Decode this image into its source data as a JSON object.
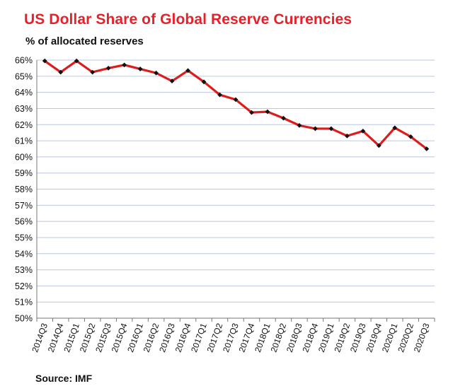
{
  "chart_data": {
    "type": "line",
    "title": "US Dollar Share of Global Reserve Currencies",
    "subtitle": "% of allocated reserves",
    "source": "Source: IMF",
    "categories": [
      "2014Q3",
      "2014Q4",
      "2015Q1",
      "2015Q2",
      "2015Q3",
      "2015Q4",
      "2016Q1",
      "2016Q2",
      "2016Q3",
      "2016Q4",
      "2017Q1",
      "2017Q2",
      "2017Q3",
      "2017Q4",
      "2018Q1",
      "2018Q2",
      "2018Q3",
      "2018Q4",
      "2019Q1",
      "2019Q2",
      "2019Q3",
      "2019Q4",
      "2020Q1",
      "2020Q2",
      "2020Q3"
    ],
    "series": [
      {
        "values": [
          65.95,
          65.25,
          65.95,
          65.25,
          65.5,
          65.7,
          65.45,
          65.2,
          64.7,
          65.35,
          64.65,
          63.85,
          63.55,
          62.75,
          62.8,
          62.4,
          61.95,
          61.75,
          61.75,
          61.3,
          61.6,
          60.7,
          61.8,
          61.25,
          60.5
        ]
      }
    ],
    "yticks": [
      "50%",
      "51%",
      "52%",
      "53%",
      "54%",
      "55%",
      "56%",
      "57%",
      "58%",
      "59%",
      "60%",
      "61%",
      "62%",
      "63%",
      "64%",
      "65%",
      "66%"
    ],
    "ylim": [
      50,
      66
    ],
    "grid": true,
    "colors": {
      "title": "#e8202a",
      "line": "#dd1c1c",
      "marker": "#111111",
      "grid": "#b9c7e6"
    }
  }
}
